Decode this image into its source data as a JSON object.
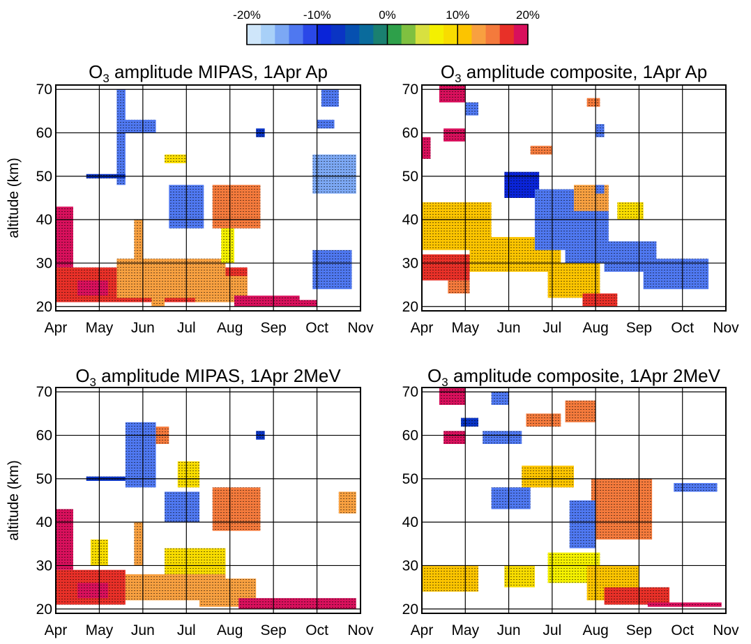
{
  "colorbar": {
    "tick_labels": [
      "-20%",
      "-10%",
      "0%",
      "10%",
      "20%"
    ],
    "tick_values": [
      -20,
      -10,
      0,
      10,
      20
    ],
    "range": [
      -20,
      20
    ],
    "step": 2,
    "colors": [
      "#cfe6fa",
      "#a8d0f8",
      "#7ca8f4",
      "#4f78f0",
      "#2a48e8",
      "#0a24d8",
      "#0a34c4",
      "#0650b0",
      "#0a6b9c",
      "#1a8070",
      "#2ea04a",
      "#7fc040",
      "#d8e040",
      "#f4f000",
      "#f8dc00",
      "#fcc400",
      "#f8a040",
      "#f47a3c",
      "#e83028",
      "#d8105c"
    ]
  },
  "axes_common": {
    "ylabel": "altitude (km)",
    "yticks": [
      20,
      30,
      40,
      50,
      60,
      70
    ],
    "xticks": [
      "Apr",
      "May",
      "Jun",
      "Jul",
      "Aug",
      "Sep",
      "Oct",
      "Nov"
    ],
    "ylim": [
      19,
      71
    ],
    "xlim": [
      0,
      7
    ]
  },
  "chart_data": [
    {
      "type": "heatmap",
      "title": {
        "pre": "O",
        "sub": "3",
        "post": " amplitude MIPAS, 1Apr Ap"
      },
      "xlabel": "",
      "ylabel": "altitude (km)",
      "x_categories": [
        "Apr",
        "May",
        "Jun",
        "Jul",
        "Aug",
        "Sep",
        "Oct",
        "Nov"
      ],
      "yticks": [
        20,
        30,
        40,
        50,
        60,
        70
      ],
      "grid": true,
      "regions": [
        {
          "x": [
            0,
            4.4
          ],
          "y": [
            21,
            29
          ],
          "value": 16
        },
        {
          "x": [
            0,
            0.4
          ],
          "y": [
            29,
            43
          ],
          "value": 20
        },
        {
          "x": [
            0.5,
            1.2
          ],
          "y": [
            22.5,
            26
          ],
          "value": 18
        },
        {
          "x": [
            1.4,
            3.9
          ],
          "y": [
            22,
            31
          ],
          "value": 12
        },
        {
          "x": [
            3.2,
            4.4
          ],
          "y": [
            21,
            27
          ],
          "value": 12
        },
        {
          "x": [
            4.1,
            5.6
          ],
          "y": [
            20,
            22.5
          ],
          "value": 19
        },
        {
          "x": [
            3.6,
            4.7
          ],
          "y": [
            38,
            48
          ],
          "value": 14
        },
        {
          "x": [
            4.5,
            6.0
          ],
          "y": [
            20,
            21.5
          ],
          "value": 20
        },
        {
          "x": [
            1.5,
            2.3
          ],
          "y": [
            60,
            63
          ],
          "value": -14
        },
        {
          "x": [
            1.4,
            1.6
          ],
          "y": [
            48,
            70
          ],
          "value": -14
        },
        {
          "x": [
            0.7,
            1.6
          ],
          "y": [
            49.5,
            50.5
          ],
          "value": -8
        },
        {
          "x": [
            2.6,
            3.4
          ],
          "y": [
            38,
            48
          ],
          "value": -14
        },
        {
          "x": [
            5.9,
            6.9
          ],
          "y": [
            46,
            55
          ],
          "value": -16
        },
        {
          "x": [
            5.9,
            6.8
          ],
          "y": [
            24,
            33
          ],
          "value": -14
        },
        {
          "x": [
            6.0,
            6.4
          ],
          "y": [
            61,
            63
          ],
          "value": -14
        },
        {
          "x": [
            6.1,
            6.5
          ],
          "y": [
            66,
            70
          ],
          "value": -14
        },
        {
          "x": [
            4.6,
            4.8
          ],
          "y": [
            59,
            61
          ],
          "value": -8
        },
        {
          "x": [
            2.2,
            2.5
          ],
          "y": [
            20,
            26
          ],
          "value": 12
        },
        {
          "x": [
            2.5,
            3.0
          ],
          "y": [
            53,
            55
          ],
          "value": 8
        },
        {
          "x": [
            1.8,
            2.0
          ],
          "y": [
            30,
            40
          ],
          "value": 12
        },
        {
          "x": [
            3.8,
            4.1
          ],
          "y": [
            30,
            38
          ],
          "value": 6
        }
      ]
    },
    {
      "type": "heatmap",
      "title": {
        "pre": "O",
        "sub": "3",
        "post": " amplitude composite, 1Apr Ap"
      },
      "xlabel": "",
      "ylabel": "",
      "x_categories": [
        "Apr",
        "May",
        "Jun",
        "Jul",
        "Aug",
        "Sep",
        "Oct",
        "Nov"
      ],
      "yticks": [
        20,
        30,
        40,
        50,
        60,
        70
      ],
      "grid": true,
      "regions": [
        {
          "x": [
            0.4,
            1.0
          ],
          "y": [
            67,
            71
          ],
          "value": 19
        },
        {
          "x": [
            0.5,
            1.0
          ],
          "y": [
            58,
            61
          ],
          "value": 18
        },
        {
          "x": [
            0,
            0.2
          ],
          "y": [
            54,
            59
          ],
          "value": 18
        },
        {
          "x": [
            0,
            1.1
          ],
          "y": [
            26,
            32
          ],
          "value": 16
        },
        {
          "x": [
            0.6,
            1.1
          ],
          "y": [
            23,
            26
          ],
          "value": 15
        },
        {
          "x": [
            0,
            1.6
          ],
          "y": [
            33,
            44
          ],
          "value": 10
        },
        {
          "x": [
            1.1,
            3.2
          ],
          "y": [
            28,
            36
          ],
          "value": 10
        },
        {
          "x": [
            2.9,
            4.1
          ],
          "y": [
            22,
            30
          ],
          "value": 11
        },
        {
          "x": [
            3.7,
            4.5
          ],
          "y": [
            20,
            23
          ],
          "value": 16
        },
        {
          "x": [
            3.5,
            4.3
          ],
          "y": [
            40,
            48
          ],
          "value": 12
        },
        {
          "x": [
            4.5,
            5.1
          ],
          "y": [
            40,
            44
          ],
          "value": 8
        },
        {
          "x": [
            1.9,
            2.7
          ],
          "y": [
            45,
            51
          ],
          "value": -10
        },
        {
          "x": [
            2.6,
            3.5
          ],
          "y": [
            33,
            47
          ],
          "value": -14
        },
        {
          "x": [
            3.3,
            4.3
          ],
          "y": [
            30,
            42
          ],
          "value": -14
        },
        {
          "x": [
            4.2,
            5.4
          ],
          "y": [
            28,
            35
          ],
          "value": -14
        },
        {
          "x": [
            5.1,
            6.6
          ],
          "y": [
            24,
            31
          ],
          "value": -14
        },
        {
          "x": [
            4.0,
            4.2
          ],
          "y": [
            46,
            48
          ],
          "value": -14
        },
        {
          "x": [
            4.0,
            4.2
          ],
          "y": [
            59,
            62
          ],
          "value": -14
        },
        {
          "x": [
            2.5,
            3.0
          ],
          "y": [
            55,
            57
          ],
          "value": 15
        },
        {
          "x": [
            3.8,
            4.1
          ],
          "y": [
            66,
            68
          ],
          "value": 15
        },
        {
          "x": [
            1.0,
            1.3
          ],
          "y": [
            64,
            67
          ],
          "value": -14
        }
      ]
    },
    {
      "type": "heatmap",
      "title": {
        "pre": "O",
        "sub": "3",
        "post": " amplitude MIPAS, 1Apr 2MeV"
      },
      "xlabel": "",
      "ylabel": "altitude (km)",
      "x_categories": [
        "Apr",
        "May",
        "Jun",
        "Jul",
        "Aug",
        "Sep",
        "Oct",
        "Nov"
      ],
      "yticks": [
        20,
        30,
        40,
        50,
        60,
        70
      ],
      "grid": true,
      "regions": [
        {
          "x": [
            0,
            1.6
          ],
          "y": [
            21,
            29
          ],
          "value": 16
        },
        {
          "x": [
            0,
            0.4
          ],
          "y": [
            29,
            43
          ],
          "value": 20
        },
        {
          "x": [
            0.5,
            1.2
          ],
          "y": [
            22.5,
            26
          ],
          "value": 18
        },
        {
          "x": [
            1.6,
            3.9
          ],
          "y": [
            22,
            28
          ],
          "value": 12
        },
        {
          "x": [
            2.5,
            3.9
          ],
          "y": [
            28,
            34
          ],
          "value": 9
        },
        {
          "x": [
            3.3,
            4.6
          ],
          "y": [
            20.5,
            27
          ],
          "value": 12
        },
        {
          "x": [
            4.2,
            6.9
          ],
          "y": [
            20,
            22.5
          ],
          "value": 19
        },
        {
          "x": [
            3.6,
            4.7
          ],
          "y": [
            38,
            48
          ],
          "value": 14
        },
        {
          "x": [
            6.5,
            6.9
          ],
          "y": [
            42,
            47
          ],
          "value": 13
        },
        {
          "x": [
            1.6,
            2.3
          ],
          "y": [
            48,
            63
          ],
          "value": -14
        },
        {
          "x": [
            0.7,
            1.6
          ],
          "y": [
            49.5,
            50.5
          ],
          "value": -8
        },
        {
          "x": [
            2.5,
            3.3
          ],
          "y": [
            40,
            47
          ],
          "value": -14
        },
        {
          "x": [
            2.3,
            2.6
          ],
          "y": [
            58,
            62
          ],
          "value": 14
        },
        {
          "x": [
            2.8,
            3.3
          ],
          "y": [
            48,
            54
          ],
          "value": 8
        },
        {
          "x": [
            1.8,
            2.0
          ],
          "y": [
            30,
            40
          ],
          "value": 12
        },
        {
          "x": [
            0.8,
            1.2
          ],
          "y": [
            30,
            36
          ],
          "value": 8
        },
        {
          "x": [
            4.6,
            4.8
          ],
          "y": [
            59,
            61
          ],
          "value": -8
        }
      ]
    },
    {
      "type": "heatmap",
      "title": {
        "pre": "O",
        "sub": "3",
        "post": " amplitude composite, 1Apr 2MeV"
      },
      "xlabel": "",
      "ylabel": "",
      "x_categories": [
        "Apr",
        "May",
        "Jun",
        "Jul",
        "Aug",
        "Sep",
        "Oct",
        "Nov"
      ],
      "yticks": [
        20,
        30,
        40,
        50,
        60,
        70
      ],
      "grid": true,
      "regions": [
        {
          "x": [
            0.4,
            1.0
          ],
          "y": [
            67,
            71
          ],
          "value": 19
        },
        {
          "x": [
            0.5,
            1.0
          ],
          "y": [
            58,
            61
          ],
          "value": 18
        },
        {
          "x": [
            0,
            1.3
          ],
          "y": [
            24,
            30
          ],
          "value": 10
        },
        {
          "x": [
            1.9,
            2.6
          ],
          "y": [
            25,
            30
          ],
          "value": 8
        },
        {
          "x": [
            2.9,
            4.1
          ],
          "y": [
            26,
            33
          ],
          "value": 7
        },
        {
          "x": [
            3.8,
            5.0
          ],
          "y": [
            22,
            30
          ],
          "value": 10
        },
        {
          "x": [
            4.2,
            5.7
          ],
          "y": [
            21,
            25
          ],
          "value": 16
        },
        {
          "x": [
            5.2,
            6.9
          ],
          "y": [
            20.5,
            21.5
          ],
          "value": 20
        },
        {
          "x": [
            3.9,
            5.3
          ],
          "y": [
            36,
            50
          ],
          "value": 14
        },
        {
          "x": [
            2.3,
            3.5
          ],
          "y": [
            48,
            53
          ],
          "value": 10
        },
        {
          "x": [
            2.4,
            3.2
          ],
          "y": [
            62,
            65
          ],
          "value": 14
        },
        {
          "x": [
            3.3,
            4.0
          ],
          "y": [
            63,
            68
          ],
          "value": 14
        },
        {
          "x": [
            1.4,
            2.3
          ],
          "y": [
            58,
            61
          ],
          "value": -14
        },
        {
          "x": [
            1.6,
            2.0
          ],
          "y": [
            67,
            70
          ],
          "value": -14
        },
        {
          "x": [
            1.6,
            2.5
          ],
          "y": [
            43,
            48
          ],
          "value": -14
        },
        {
          "x": [
            3.4,
            4.0
          ],
          "y": [
            34,
            45
          ],
          "value": -14
        },
        {
          "x": [
            5.8,
            6.8
          ],
          "y": [
            47,
            49
          ],
          "value": -14
        },
        {
          "x": [
            0.9,
            1.3
          ],
          "y": [
            62,
            64
          ],
          "value": -8
        }
      ]
    }
  ]
}
